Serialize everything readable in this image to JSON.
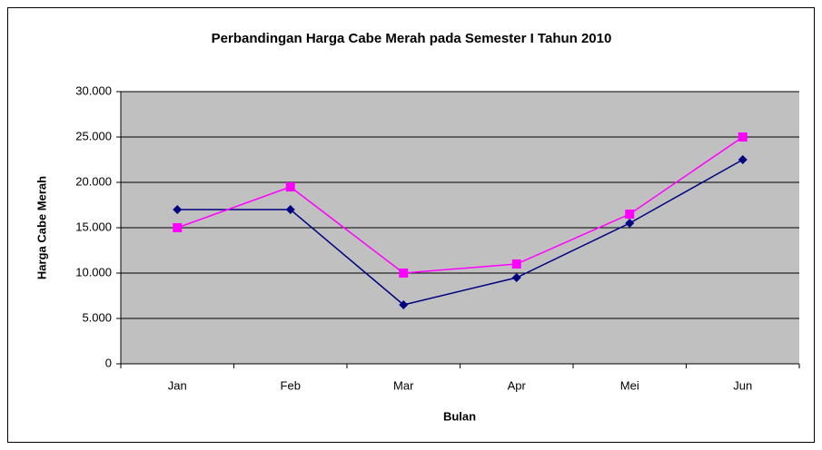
{
  "chart_data": {
    "type": "line",
    "title": "Perbandingan Harga Cabe Merah pada Semester I Tahun 2010",
    "x_label": "Bulan",
    "y_label": "Harga Cabe Merah",
    "categories": [
      "Jan",
      "Feb",
      "Mar",
      "Apr",
      "Mei",
      "Jun"
    ],
    "series": [
      {
        "color": "#000080",
        "marker": "diamond",
        "values": [
          17000,
          17000,
          6500,
          9500,
          15500,
          22500
        ]
      },
      {
        "color": "#ff00ff",
        "marker": "square",
        "values": [
          15000,
          19500,
          10000,
          11000,
          16500,
          25000
        ]
      }
    ],
    "ylim": [
      0,
      30000
    ],
    "yticks": [
      0,
      {
        "value": 5000,
        "label": "5.000"
      },
      {
        "value": 10000,
        "label": "10.000"
      },
      {
        "value": 15000,
        "label": "15.000"
      },
      {
        "value": 20000,
        "label": "20.000"
      },
      {
        "value": 25000,
        "label": "25.000"
      },
      {
        "value": 30000,
        "label": "30.000"
      }
    ],
    "grid": true,
    "plot_background": "#c0c0c0"
  }
}
